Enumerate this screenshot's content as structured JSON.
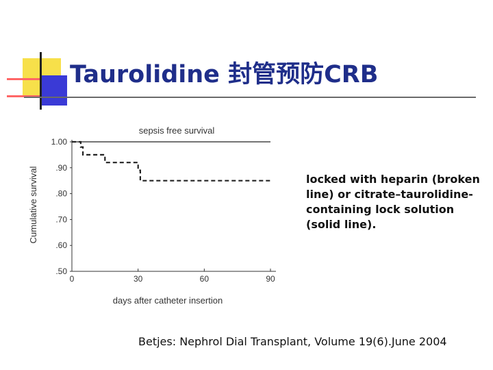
{
  "title": "Taurolidine 封管预防CRB",
  "chart_data": {
    "type": "line",
    "title": "sepsis free survival",
    "xlabel": "days after catheter insertion",
    "ylabel": "Cumulative survival",
    "xlim": [
      0,
      90
    ],
    "ylim": [
      0.5,
      1.0
    ],
    "x_ticks": [
      0,
      30,
      60,
      90
    ],
    "x_tick_labels": [
      "0",
      "30",
      "60",
      "90"
    ],
    "y_ticks": [
      1.0,
      0.9,
      0.8,
      0.7,
      0.6,
      0.5
    ],
    "y_tick_labels": [
      "1.00",
      ".90",
      ".80",
      ".70",
      ".60",
      ".50"
    ],
    "grid": false,
    "series": [
      {
        "style": "solid",
        "points": [
          [
            0,
            1.0
          ],
          [
            90,
            1.0
          ]
        ]
      },
      {
        "style": "dashed",
        "points": [
          [
            0,
            1.0
          ],
          [
            4,
            1.0
          ],
          [
            4,
            0.98
          ],
          [
            5,
            0.98
          ],
          [
            5,
            0.95
          ],
          [
            15,
            0.95
          ],
          [
            15,
            0.92
          ],
          [
            30,
            0.92
          ],
          [
            30,
            0.89
          ],
          [
            31,
            0.89
          ],
          [
            31,
            0.85
          ],
          [
            90,
            0.85
          ]
        ]
      }
    ]
  },
  "caption": "locked with heparin (broken line) or citrate–taurolidine-containing lock solution (solid line).",
  "citation": "Betjes: Nephrol Dial Transplant, Volume 19(6).June 2004"
}
